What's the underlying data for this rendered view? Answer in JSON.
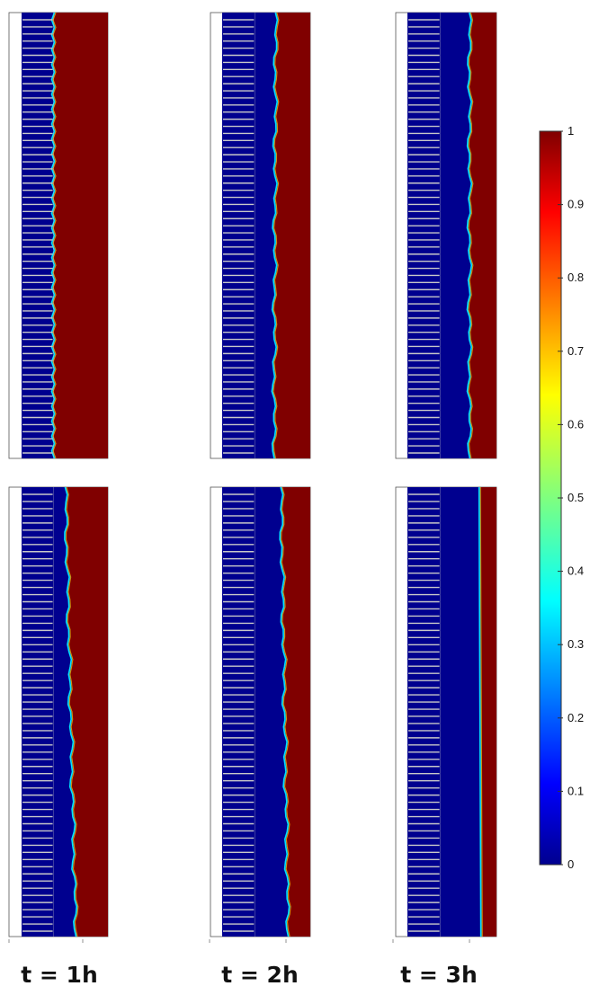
{
  "figure": {
    "kind": "simulation-field-grid",
    "rows": 2,
    "columns": 3,
    "columns_time_labels": [
      "t = 1h",
      "t = 2h",
      "t = 3h"
    ],
    "panels": [
      {
        "row": 0,
        "col": 0,
        "front_top": 0.38,
        "front_bottom": 0.38,
        "front_style": "ragged"
      },
      {
        "row": 0,
        "col": 1,
        "front_top": 0.62,
        "front_bottom": 0.6,
        "front_style": "wavy"
      },
      {
        "row": 0,
        "col": 2,
        "front_top": 0.71,
        "front_bottom": 0.71,
        "front_style": "wavy"
      },
      {
        "row": 1,
        "col": 0,
        "front_top": 0.52,
        "front_bottom": 0.64,
        "front_style": "wavy"
      },
      {
        "row": 1,
        "col": 1,
        "front_top": 0.68,
        "front_bottom": 0.76,
        "front_style": "wavy"
      },
      {
        "row": 1,
        "col": 2,
        "front_top": 0.82,
        "front_bottom": 0.84,
        "front_style": "smooth"
      }
    ],
    "colors": {
      "low": "#00008f",
      "high": "#800000",
      "fins": "#c8c8c8",
      "background": "#ffffff"
    }
  },
  "colorbar": {
    "colormap": "jet",
    "min": 0,
    "max": 1,
    "ticks": [
      "0",
      "0.1",
      "0.2",
      "0.3",
      "0.4",
      "0.5",
      "0.6",
      "0.7",
      "0.8",
      "0.9",
      "1"
    ],
    "tick_values": [
      0,
      0.1,
      0.2,
      0.3,
      0.4,
      0.5,
      0.6,
      0.7,
      0.8,
      0.9,
      1.0
    ]
  }
}
